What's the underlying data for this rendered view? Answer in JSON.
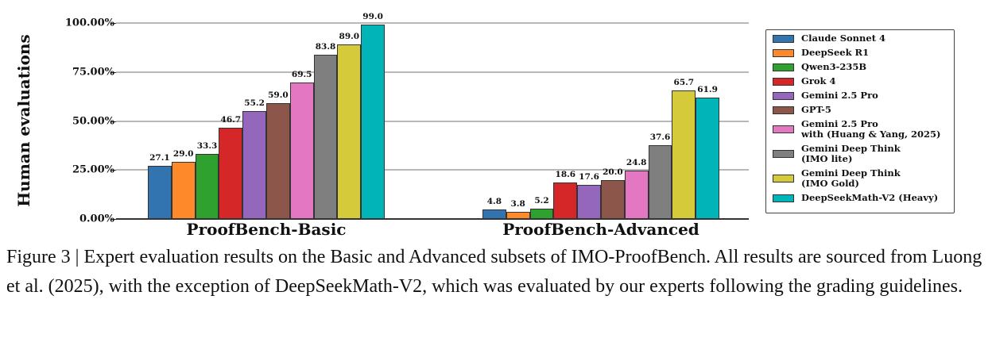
{
  "chart_data": {
    "type": "bar",
    "title": "",
    "xlabel": "",
    "ylabel": "Human evaluations",
    "ylim": [
      0,
      100
    ],
    "yticks": [
      "0.00%",
      "25.00%",
      "50.00%",
      "75.00%",
      "100.00%"
    ],
    "grid": true,
    "legend_position": "right",
    "categories": [
      "ProofBench-Basic",
      "ProofBench-Advanced"
    ],
    "series": [
      {
        "name": "Claude Sonnet 4",
        "color": "#3274b0",
        "values": [
          27.1,
          4.8
        ]
      },
      {
        "name": "DeepSeek R1",
        "color": "#fd892b",
        "values": [
          29.0,
          3.8
        ]
      },
      {
        "name": "Qwen3-235B",
        "color": "#2fa12f",
        "values": [
          33.3,
          5.2
        ]
      },
      {
        "name": "Grok 4",
        "color": "#d52628",
        "values": [
          46.7,
          18.6
        ]
      },
      {
        "name": "Gemini 2.5 Pro",
        "color": "#9467bd",
        "values": [
          55.2,
          17.6
        ]
      },
      {
        "name": "GPT-5",
        "color": "#8c564b",
        "values": [
          59.0,
          20.0
        ]
      },
      {
        "name": "Gemini 2.5 Pro\nwith (Huang & Yang, 2025)",
        "color": "#e377c2",
        "values": [
          69.5,
          24.8
        ]
      },
      {
        "name": "Gemini Deep Think\n(IMO lite)",
        "color": "#7f7f7f",
        "values": [
          83.8,
          37.6
        ]
      },
      {
        "name": "Gemini Deep Think\n(IMO Gold)",
        "color": "#d4ca3a",
        "values": [
          89.0,
          65.7
        ]
      },
      {
        "name": "DeepSeekMath-V2 (Heavy)",
        "color": "#01b4b7",
        "values": [
          99.0,
          61.9
        ]
      }
    ]
  },
  "legend": {
    "items": [
      {
        "line1": "Claude Sonnet 4",
        "line2": ""
      },
      {
        "line1": "DeepSeek R1",
        "line2": ""
      },
      {
        "line1": "Qwen3-235B",
        "line2": ""
      },
      {
        "line1": "Grok 4",
        "line2": ""
      },
      {
        "line1": "Gemini 2.5 Pro",
        "line2": ""
      },
      {
        "line1": "GPT-5",
        "line2": ""
      },
      {
        "line1": "Gemini 2.5 Pro",
        "line2": "with (Huang & Yang, 2025)"
      },
      {
        "line1": "Gemini Deep Think",
        "line2": "(IMO lite)"
      },
      {
        "line1": "Gemini Deep Think",
        "line2": "(IMO Gold)"
      },
      {
        "line1": "DeepSeekMath-V2 (Heavy)",
        "line2": ""
      }
    ]
  },
  "caption": {
    "text": "Figure 3 | Expert evaluation results on the Basic and Advanced subsets of IMO-ProofBench. All results are sourced from Luong et al. (2025), with the exception of DeepSeekMath-V2, which was evaluated by our experts following the grading guidelines."
  }
}
